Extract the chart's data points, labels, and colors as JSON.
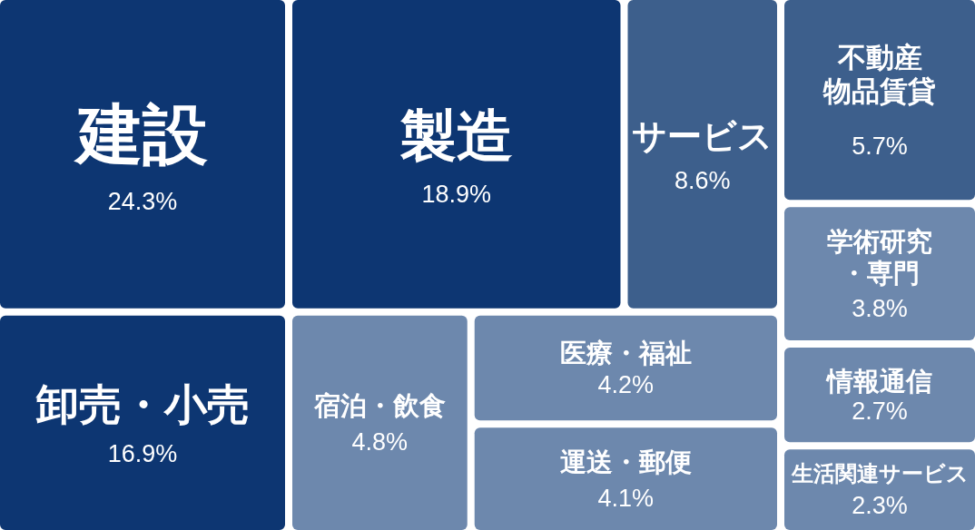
{
  "chart_data": {
    "type": "other",
    "categories": [
      "建設",
      "製造",
      "卸売・小売",
      "サービス",
      "不動産物品賃貸",
      "宿泊・飲食",
      "医療・福祉",
      "運送・郵便",
      "学術研究・専門",
      "情報通信",
      "生活関連サービス"
    ],
    "values": [
      24.3,
      18.9,
      16.9,
      8.6,
      5.7,
      4.8,
      4.2,
      4.1,
      3.8,
      2.7,
      2.3
    ],
    "value_labels": [
      "24.3%",
      "18.9%",
      "16.9%",
      "8.6%",
      "5.7%",
      "4.8%",
      "4.2%",
      "4.1%",
      "3.8%",
      "2.7%",
      "2.3%"
    ],
    "colors": [
      "#0d3672",
      "#0d3672",
      "#0d3672",
      "#3d5f8c",
      "#3d5f8c",
      "#6d88ad",
      "#6d88ad",
      "#6d88ad",
      "#6d88ad",
      "#6d88ad",
      "#6d88ad"
    ]
  }
}
